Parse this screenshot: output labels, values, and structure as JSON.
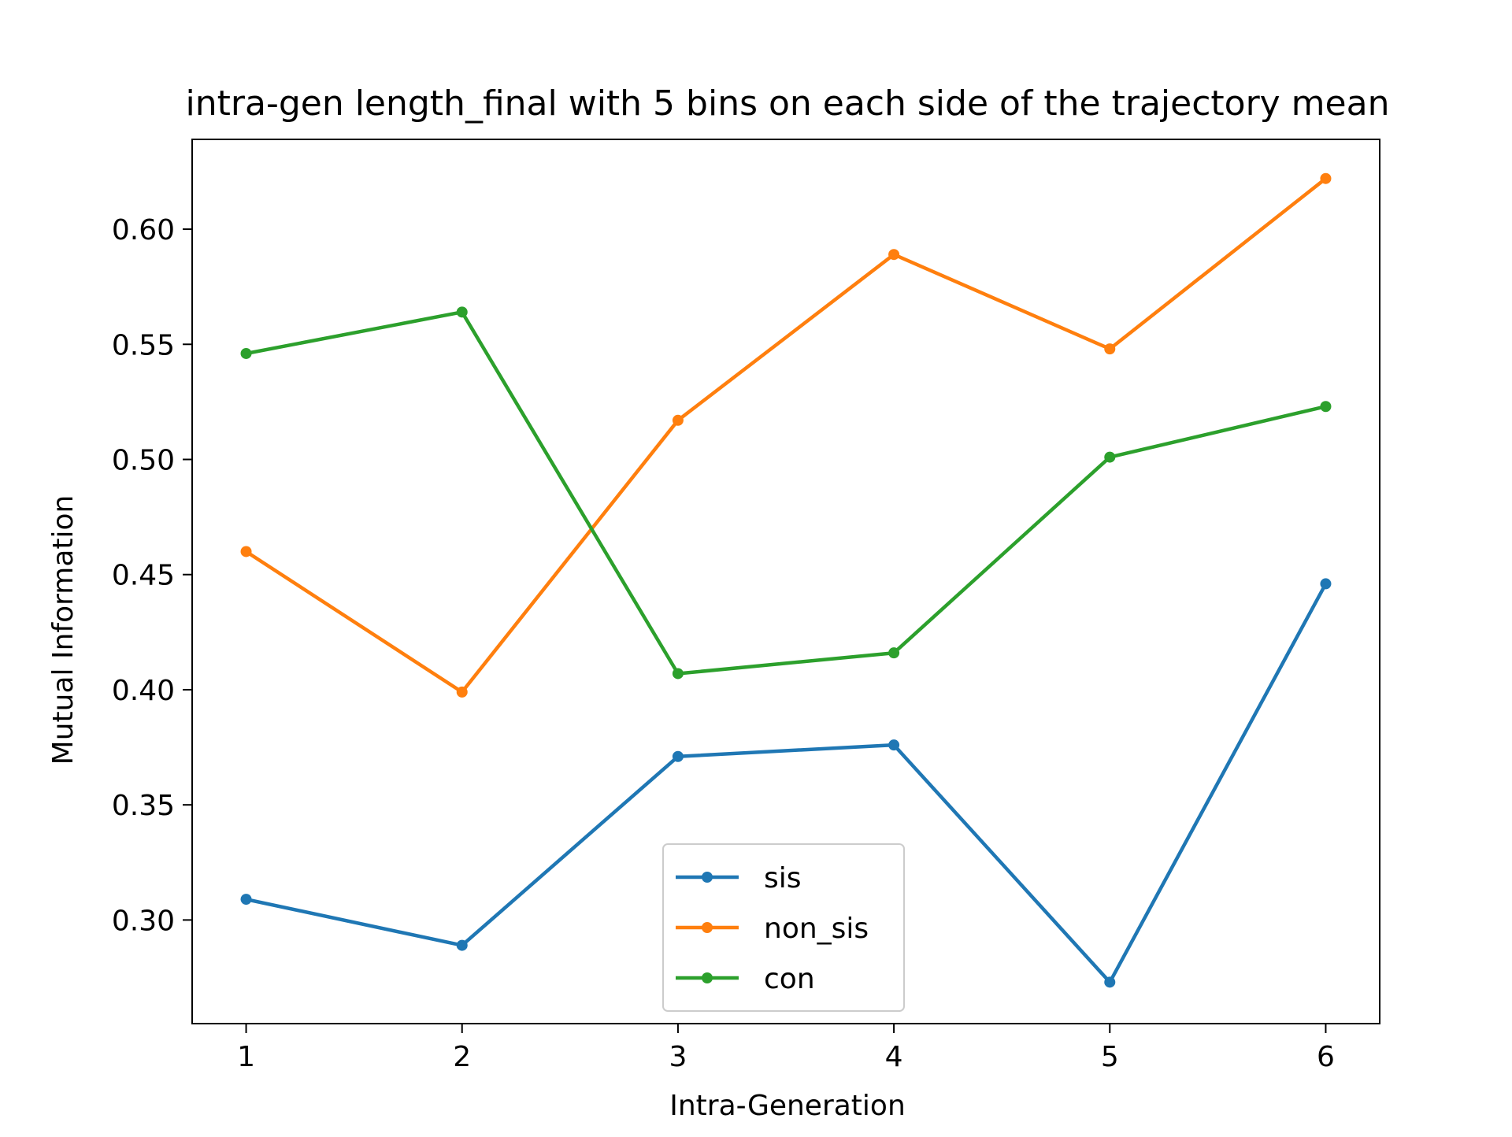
{
  "chart_data": {
    "type": "line",
    "title": "intra-gen length_final with 5 bins on each side of the trajectory mean",
    "xlabel": "Intra-Generation",
    "ylabel": "Mutual Information",
    "x": [
      1,
      2,
      3,
      4,
      5,
      6
    ],
    "x_ticks": [
      "1",
      "2",
      "3",
      "4",
      "5",
      "6"
    ],
    "y_ticks": [
      "0.30",
      "0.35",
      "0.40",
      "0.45",
      "0.50",
      "0.55",
      "0.60"
    ],
    "xlim": [
      0.75,
      6.25
    ],
    "ylim": [
      0.255,
      0.639
    ],
    "grid": false,
    "legend_position": "lower-center",
    "series": [
      {
        "name": "sis",
        "color": "#1f77b4",
        "values": [
          0.309,
          0.289,
          0.371,
          0.376,
          0.273,
          0.446
        ]
      },
      {
        "name": "non_sis",
        "color": "#ff7f0e",
        "values": [
          0.46,
          0.399,
          0.517,
          0.589,
          0.548,
          0.622
        ]
      },
      {
        "name": "con",
        "color": "#2ca02c",
        "values": [
          0.546,
          0.564,
          0.407,
          0.416,
          0.501,
          0.523
        ]
      }
    ]
  }
}
